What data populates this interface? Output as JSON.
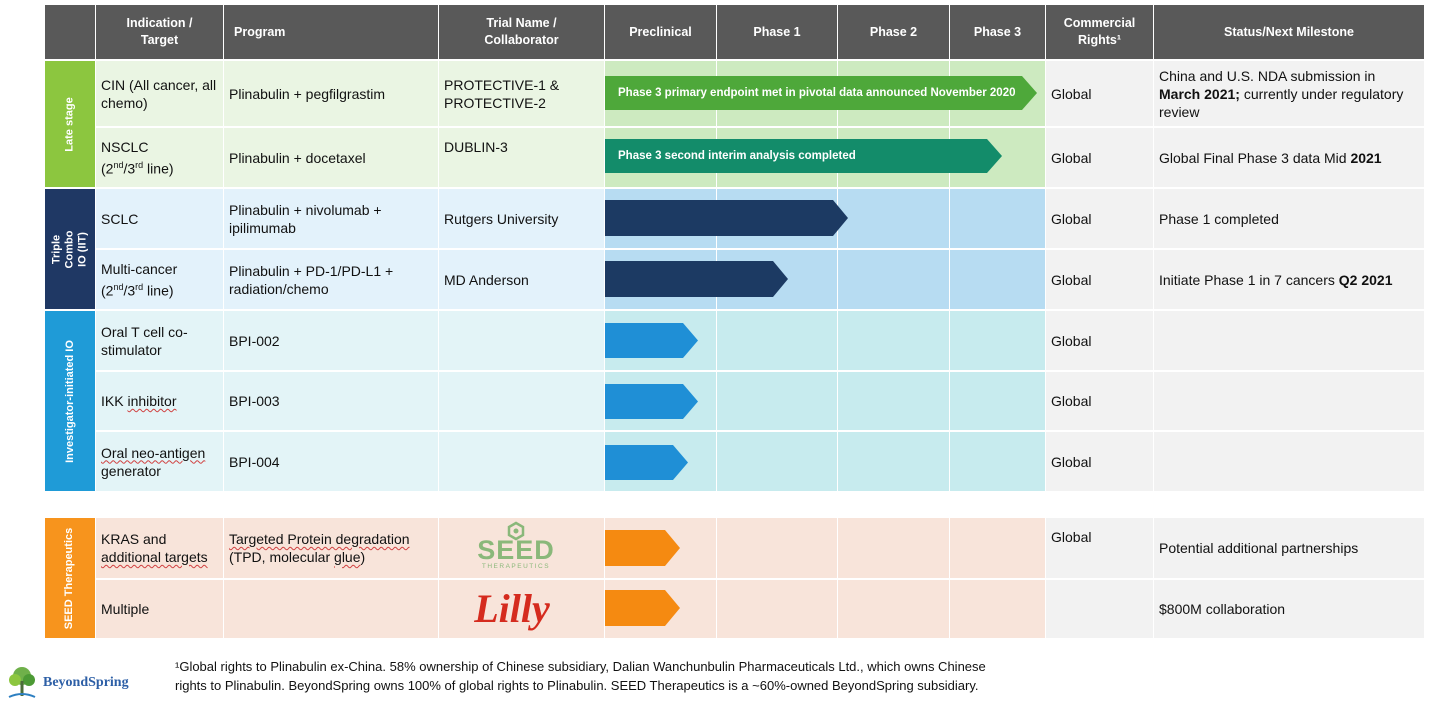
{
  "headers": {
    "indication": "Indication / Target",
    "program": "Program",
    "trial": "Trial Name / Collaborator",
    "preclinical": "Preclinical",
    "phase1": "Phase 1",
    "phase2": "Phase 2",
    "phase3": "Phase 3",
    "rights": "Commercial Rights¹",
    "status": "Status/Next Milestone"
  },
  "groups": {
    "late": "Late stage",
    "triple": "Triple Combo IO (IIT)",
    "investigator": "Investigator-initiated IO",
    "seed": "SEED Therapeutics"
  },
  "rows": [
    {
      "indication": "CIN (All cancer, all chemo)",
      "program": "Plinabulin + pegfilgrastim",
      "trial": "PROTECTIVE-1 & PROTECTIVE-2",
      "arrow_label": "Phase 3 primary endpoint met in pivotal data announced November 2020",
      "rights": "Global",
      "status_a": "China and U.S. NDA submission in ",
      "status_b": "March 2021;",
      "status_c": " currently under regulatory review",
      "progress": "Phase 3 complete"
    },
    {
      "indication": "NSCLC (2nd/3rd line)",
      "program": "Plinabulin + docetaxel",
      "trial": "DUBLIN-3",
      "arrow_label": "Phase 3 second interim analysis completed",
      "rights": "Global",
      "status_a": "Global Final Phase 3 data Mid ",
      "status_b": "2021",
      "progress": "Phase 3"
    },
    {
      "indication": "SCLC",
      "program": "Plinabulin + nivolumab + ipilimumab",
      "trial": "Rutgers University",
      "rights": "Global",
      "status_a": "Phase 1 completed",
      "progress": "Phase 1 complete"
    },
    {
      "indication": "Multi-cancer (2nd/3rd line)",
      "program": "Plinabulin + PD-1/PD-L1 + radiation/chemo",
      "trial": "MD Anderson",
      "rights": "Global",
      "status_a": "Initiate Phase 1 in 7 cancers ",
      "status_b": "Q2 2021",
      "progress": "Phase 1"
    },
    {
      "indication": "Oral T cell co-stimulator",
      "program": "BPI-002",
      "trial": "",
      "rights": "Global",
      "status_a": "",
      "progress": "Preclinical"
    },
    {
      "indication": "IKK inhibitor",
      "program": "BPI-003",
      "trial": "",
      "rights": "Global",
      "status_a": "",
      "progress": "Preclinical"
    },
    {
      "indication": "Oral neo-antigen generator",
      "program": "BPI-004",
      "trial": "",
      "rights": "Global",
      "status_a": "",
      "progress": "Preclinical"
    },
    {
      "indication": "KRAS and additional targets",
      "program": "Targeted Protein degradation (TPD, molecular glue)",
      "trial": "",
      "rights": "Global",
      "status_a": "Potential additional partnerships",
      "progress": "Preclinical"
    },
    {
      "indication": "Multiple",
      "program": "",
      "trial": "",
      "rights": "",
      "status_a": "$800M collaboration",
      "progress": "Preclinical"
    }
  ],
  "ordinals": {
    "second": "nd",
    "third": "rd"
  },
  "logos": {
    "seed_main": "SEED",
    "seed_sub": "THERAPEUTICS",
    "lilly": "Lilly",
    "beyondspring": "BeyondSpring"
  },
  "footnote": {
    "line1": "¹Global rights to Plinabulin ex-China. 58% ownership of Chinese subsidiary, Dalian Wanchunbulin Pharmaceuticals Ltd., which owns Chinese",
    "line2": "rights to Plinabulin. BeyondSpring owns 100% of global rights to Plinabulin. SEED Therapeutics is a ~60%-owned BeyondSpring subsidiary."
  },
  "colors": {
    "header": "#595959",
    "late_row": "#eaf5e3",
    "late_phase": "#cdeac0",
    "triple_row": "#e3f2fb",
    "triple_phase": "#b7dcf2",
    "inv_row": "#e3f4f7",
    "inv_phase": "#c7ebee",
    "seed_row": "#f8e4da",
    "green_arrow": "#4ea83a",
    "teal_arrow": "#138c6a",
    "navy_arrow": "#1c3a63",
    "blue_arrow": "#1f8fd6",
    "orange_arrow": "#f58a11",
    "late_label": "#8cc63f",
    "triple_label": "#1f3864",
    "inv_label": "#1f9bd7",
    "seed_label": "#f7941d",
    "status_bg": "#f2f2f2"
  }
}
